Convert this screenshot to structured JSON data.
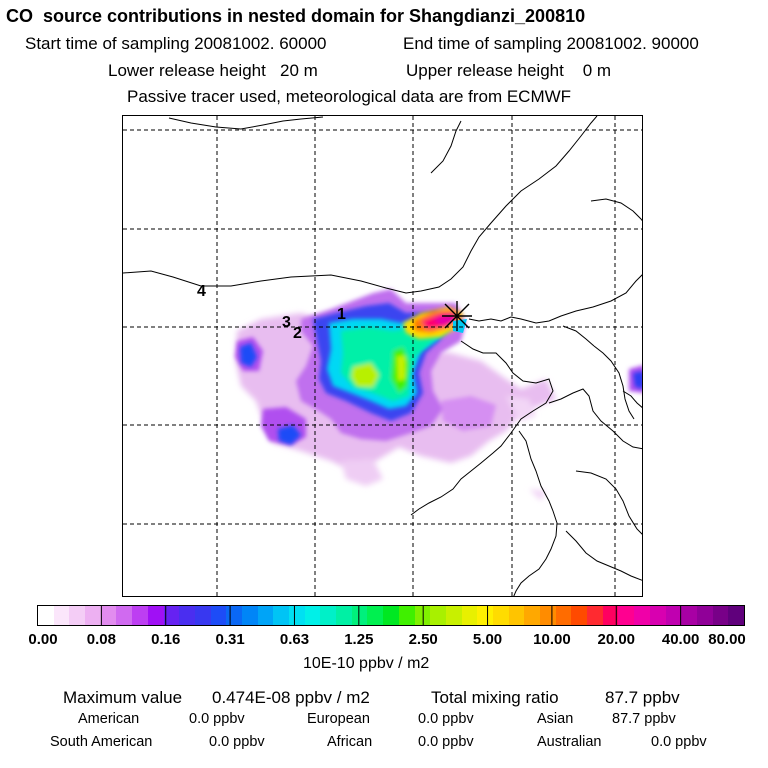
{
  "header": {
    "title": "CO  source contributions in nested domain for Shangdianzi_200810",
    "start_time": "Start time of sampling 20081002. 60000",
    "end_time": "End time of sampling 20081002. 90000",
    "lower_height": "Lower release height   20 m",
    "upper_height": "Upper release height    0 m",
    "tracer_note": "Passive tracer used, meteorological data are from ECMWF"
  },
  "map": {
    "region_labels": [
      "1",
      "2",
      "3",
      "4"
    ],
    "receptor_marker": "receptor-star-icon"
  },
  "colorbar": {
    "ticks": [
      "0.00",
      "0.08",
      "0.16",
      "0.31",
      "0.63",
      "1.25",
      "2.50",
      "5.00",
      "10.00",
      "20.00",
      "40.00",
      "80.00"
    ],
    "units": "10E-10 ppbv / m2",
    "colors": [
      "#ffffff",
      "#fbe6fb",
      "#f4cdf6",
      "#edb0f2",
      "#e28cef",
      "#d06af0",
      "#bd3ef2",
      "#a010f5",
      "#6622f2",
      "#4a2ef0",
      "#3838f0",
      "#1d4cf7",
      "#0a68f5",
      "#0085f7",
      "#00a4f7",
      "#00c4f5",
      "#00e0f2",
      "#00f0e8",
      "#00f0c8",
      "#00f0a4",
      "#00f07c",
      "#00f050",
      "#00e822",
      "#40f000",
      "#80f000",
      "#a8f000",
      "#c8f000",
      "#e8f000",
      "#fff000",
      "#ffdc00",
      "#ffc400",
      "#ffa800",
      "#ff8c00",
      "#ff6c00",
      "#ff4a00",
      "#ff2a30",
      "#ff0060",
      "#ff0090",
      "#f000a8",
      "#d800b0",
      "#c000b0",
      "#a800a4",
      "#900098",
      "#780088",
      "#60007c"
    ]
  },
  "summary": {
    "max_label": "Maximum value",
    "max_value": "0.474E-08 ppbv / m2",
    "total_label": "Total mixing ratio",
    "total_value": "87.7 ppbv",
    "regions": [
      {
        "name": "American",
        "value": "0.0 ppbv"
      },
      {
        "name": "European",
        "value": "0.0 ppbv"
      },
      {
        "name": "Asian",
        "value": "87.7 ppbv"
      },
      {
        "name": "South American",
        "value": "0.0 ppbv"
      },
      {
        "name": "African",
        "value": "0.0 ppbv"
      },
      {
        "name": "Australian",
        "value": "0.0 ppbv"
      }
    ]
  }
}
